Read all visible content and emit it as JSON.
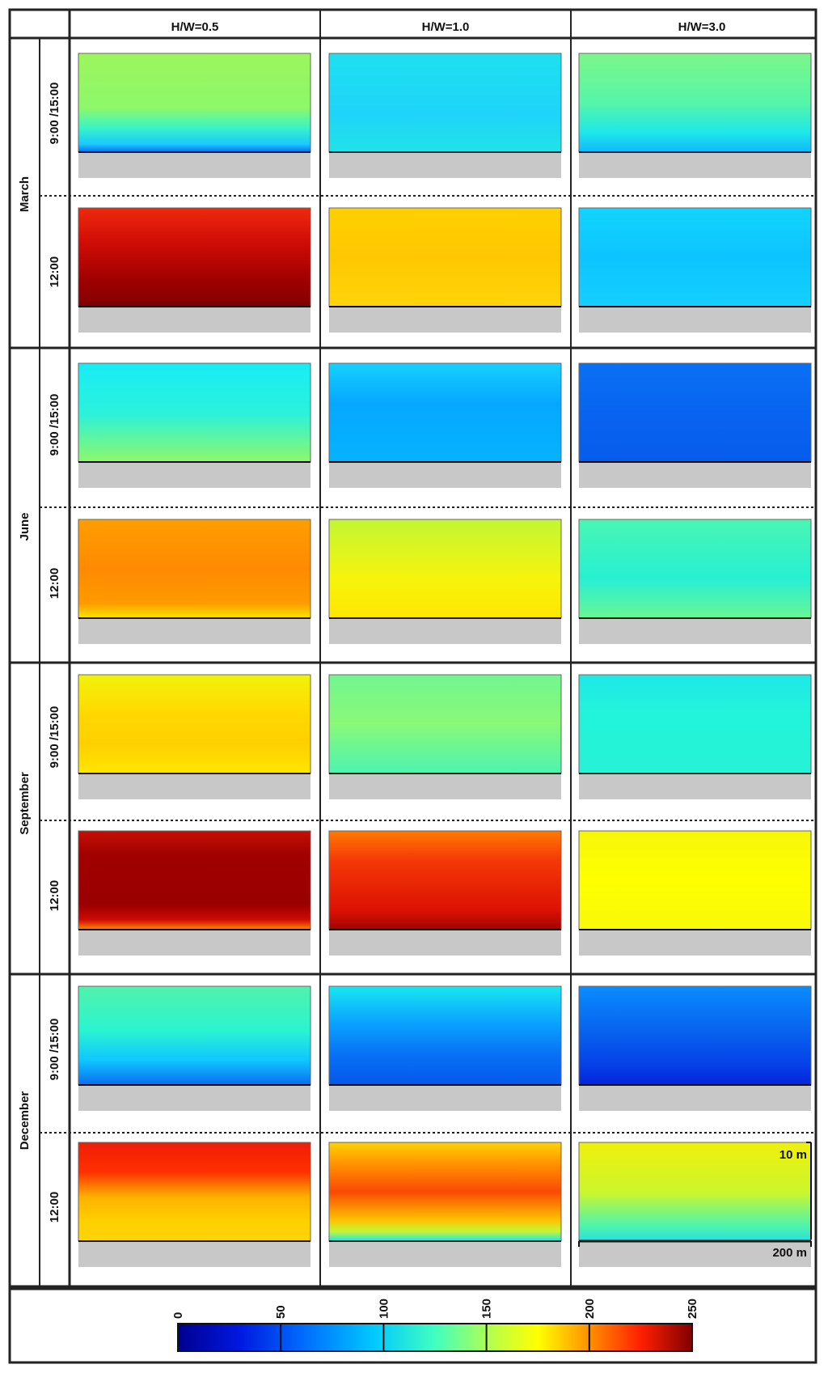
{
  "header": {
    "columns": [
      "H/W=0.5",
      "H/W=1.0",
      "H/W=3.0"
    ]
  },
  "rows": [
    {
      "month": "March",
      "times": [
        "9:00 /15:00",
        "12:00"
      ]
    },
    {
      "month": "June",
      "times": [
        "9:00 /15:00",
        "12:00"
      ]
    },
    {
      "month": "September",
      "times": [
        "9:00 /15:00",
        "12:00"
      ]
    },
    {
      "month": "December",
      "times": [
        "9:00 /15:00",
        "12:00"
      ]
    }
  ],
  "panels": [
    [
      {
        "gradient": [
          [
            "0",
            "#9cf55c"
          ],
          [
            "0.55",
            "#8ef86a"
          ],
          [
            "0.75",
            "#3af4c6"
          ],
          [
            "0.92",
            "#1cc8ff"
          ],
          [
            "1",
            "#0a6cf0"
          ]
        ]
      },
      {
        "gradient": [
          [
            "0",
            "#1ee0f0"
          ],
          [
            "0.6",
            "#1ed4f8"
          ],
          [
            "1",
            "#22e2e8"
          ]
        ]
      },
      {
        "gradient": [
          [
            "0",
            "#7cf68a"
          ],
          [
            "0.5",
            "#56f6a8"
          ],
          [
            "0.8",
            "#1ee8e8"
          ],
          [
            "1",
            "#10b8ff"
          ]
        ]
      }
    ],
    [
      {
        "gradient": [
          [
            "0",
            "#ee2a0e"
          ],
          [
            "0.35",
            "#d00c06"
          ],
          [
            "0.75",
            "#9c0000"
          ],
          [
            "0.92",
            "#8c0000"
          ],
          [
            "1",
            "#7a0000"
          ]
        ]
      },
      {
        "gradient": [
          [
            "0",
            "#ffd000"
          ],
          [
            "0.5",
            "#ffc800"
          ],
          [
            "1",
            "#ffd40a"
          ]
        ]
      },
      {
        "gradient": [
          [
            "0",
            "#12d4ff"
          ],
          [
            "0.5",
            "#0cc4ff"
          ],
          [
            "1",
            "#14d0ff"
          ]
        ]
      }
    ],
    [
      {
        "gradient": [
          [
            "0",
            "#18ecf4"
          ],
          [
            "0.5",
            "#2af2dc"
          ],
          [
            "1",
            "#8ef86a"
          ]
        ]
      },
      {
        "gradient": [
          [
            "0",
            "#16d0ff"
          ],
          [
            "0.4",
            "#06a8ff"
          ],
          [
            "1",
            "#06b2ff"
          ]
        ]
      },
      {
        "gradient": [
          [
            "0",
            "#0a70f4"
          ],
          [
            "0.5",
            "#0864f0"
          ],
          [
            "1",
            "#075cec"
          ]
        ]
      }
    ],
    [
      {
        "gradient": [
          [
            "0",
            "#ff9e00"
          ],
          [
            "0.5",
            "#ff8a02"
          ],
          [
            "0.85",
            "#ff9a00"
          ],
          [
            "1",
            "#ffe600"
          ]
        ]
      },
      {
        "gradient": [
          [
            "0",
            "#c2f634"
          ],
          [
            "0.6",
            "#f6f40c"
          ],
          [
            "1",
            "#ffe600"
          ]
        ]
      },
      {
        "gradient": [
          [
            "0",
            "#4af6b4"
          ],
          [
            "0.6",
            "#26f0d2"
          ],
          [
            "1",
            "#6af694"
          ]
        ]
      }
    ],
    [
      {
        "gradient": [
          [
            "0",
            "#f2f20a"
          ],
          [
            "0.4",
            "#ffd800"
          ],
          [
            "0.7",
            "#ffd000"
          ],
          [
            "1",
            "#ffe600"
          ]
        ]
      },
      {
        "gradient": [
          [
            "0",
            "#72f690"
          ],
          [
            "0.5",
            "#8af878"
          ],
          [
            "1",
            "#4cf4b0"
          ]
        ]
      },
      {
        "gradient": [
          [
            "0",
            "#1ee8e8"
          ],
          [
            "0.4",
            "#22f4da"
          ],
          [
            "1",
            "#26f2d6"
          ]
        ]
      }
    ],
    [
      {
        "gradient": [
          [
            "0",
            "#c41004"
          ],
          [
            "0.25",
            "#a00000"
          ],
          [
            "0.75",
            "#9a0000"
          ],
          [
            "0.9",
            "#d00a04"
          ],
          [
            "1",
            "#ff8a00"
          ]
        ]
      },
      {
        "gradient": [
          [
            "0",
            "#ff7a00"
          ],
          [
            "0.3",
            "#f43806"
          ],
          [
            "0.8",
            "#dc1204"
          ],
          [
            "1",
            "#a00400"
          ]
        ]
      },
      {
        "gradient": [
          [
            "0",
            "#f6f60a"
          ],
          [
            "0.5",
            "#ffff00"
          ],
          [
            "1",
            "#f8f80a"
          ]
        ]
      }
    ],
    [
      {
        "gradient": [
          [
            "0",
            "#52f2ac"
          ],
          [
            "0.45",
            "#2af4d0"
          ],
          [
            "0.75",
            "#10c6ff"
          ],
          [
            "1",
            "#0a6cf0"
          ]
        ]
      },
      {
        "gradient": [
          [
            "0",
            "#18e8f0"
          ],
          [
            "0.35",
            "#0aa6ff"
          ],
          [
            "0.7",
            "#0870f4"
          ],
          [
            "1",
            "#0558ec"
          ]
        ]
      },
      {
        "gradient": [
          [
            "0",
            "#0a8cff"
          ],
          [
            "0.4",
            "#0868f0"
          ],
          [
            "0.8",
            "#0640e8"
          ],
          [
            "1",
            "#0424dc"
          ]
        ]
      }
    ],
    [
      {
        "gradient": [
          [
            "0",
            "#f01c08"
          ],
          [
            "0.3",
            "#ff3000"
          ],
          [
            "0.55",
            "#ffb000"
          ],
          [
            "0.8",
            "#ffd000"
          ],
          [
            "1",
            "#ffd40a"
          ]
        ]
      },
      {
        "gradient": [
          [
            "0",
            "#ffd200"
          ],
          [
            "0.25",
            "#ff8a00"
          ],
          [
            "0.5",
            "#f84a04"
          ],
          [
            "0.78",
            "#ffc000"
          ],
          [
            "0.9",
            "#c6f634"
          ],
          [
            "1",
            "#1ce4f0"
          ]
        ]
      },
      {
        "gradient": [
          [
            "0",
            "#f0f00a"
          ],
          [
            "0.5",
            "#ccf62c"
          ],
          [
            "0.85",
            "#4cf4b0"
          ],
          [
            "1",
            "#2ae0e0"
          ]
        ]
      }
    ]
  ],
  "scale": {
    "height_label": "10 m",
    "width_label": "200 m"
  },
  "colorbar": {
    "ticks": [
      "0",
      "50",
      "100",
      "150",
      "200",
      "250"
    ],
    "gradient": [
      [
        "0",
        "#00008f"
      ],
      [
        "0.12",
        "#0018e0"
      ],
      [
        "0.25",
        "#0070ff"
      ],
      [
        "0.38",
        "#00c8ff"
      ],
      [
        "0.5",
        "#40ffc0"
      ],
      [
        "0.62",
        "#c0ff40"
      ],
      [
        "0.7",
        "#ffff00"
      ],
      [
        "0.8",
        "#ff9000"
      ],
      [
        "0.9",
        "#ff2000"
      ],
      [
        "1",
        "#800000"
      ]
    ]
  }
}
